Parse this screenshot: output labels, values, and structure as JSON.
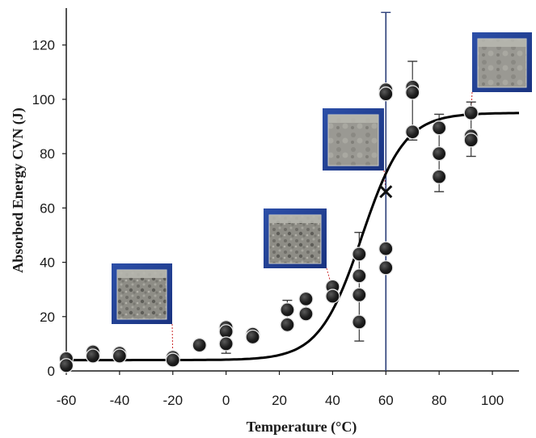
{
  "chart_data": {
    "type": "scatter",
    "title": "",
    "xlabel": "Temperature (°C)",
    "ylabel": "Absorbed Energy CVN (J)",
    "xlim": [
      -60,
      110
    ],
    "ylim": [
      0,
      133
    ],
    "x_ticks": [
      -60,
      -40,
      -20,
      0,
      20,
      40,
      60,
      80,
      100
    ],
    "y_ticks": [
      0,
      20,
      40,
      60,
      80,
      100,
      120
    ],
    "grid": false,
    "legend": "none",
    "colors": {
      "points": "#1a1a1a",
      "curve": "#000000",
      "guide_line": "#2a3e78",
      "leader": "#cc2a2a"
    },
    "series": [
      {
        "type": "scatter",
        "points": [
          {
            "x": -60,
            "y": 4.5
          },
          {
            "x": -60,
            "y": 2
          },
          {
            "x": -50,
            "y": 7
          },
          {
            "x": -50,
            "y": 5.5
          },
          {
            "x": -40,
            "y": 6.5
          },
          {
            "x": -40,
            "y": 5.5
          },
          {
            "x": -20,
            "y": 5
          },
          {
            "x": -20,
            "y": 4
          },
          {
            "x": -10,
            "y": 9.5
          },
          {
            "x": 0,
            "y": 16
          },
          {
            "x": 0,
            "y": 14.5
          },
          {
            "x": 0,
            "y": 10
          },
          {
            "x": 10,
            "y": 13.5
          },
          {
            "x": 10,
            "y": 12.5
          },
          {
            "x": 23,
            "y": 22.5
          },
          {
            "x": 23,
            "y": 17
          },
          {
            "x": 30,
            "y": 26.5
          },
          {
            "x": 30,
            "y": 21
          },
          {
            "x": 40,
            "y": 31
          },
          {
            "x": 40,
            "y": 27.5
          },
          {
            "x": 50,
            "y": 43
          },
          {
            "x": 50,
            "y": 35
          },
          {
            "x": 50,
            "y": 28
          },
          {
            "x": 50,
            "y": 18
          },
          {
            "x": 60,
            "y": 103.5
          },
          {
            "x": 60,
            "y": 102
          },
          {
            "x": 60,
            "y": 45
          },
          {
            "x": 60,
            "y": 38
          },
          {
            "x": 70,
            "y": 104.5
          },
          {
            "x": 70,
            "y": 102.5
          },
          {
            "x": 70,
            "y": 88
          },
          {
            "x": 80,
            "y": 89.5
          },
          {
            "x": 80,
            "y": 80
          },
          {
            "x": 80,
            "y": 71.5
          },
          {
            "x": 92,
            "y": 95
          },
          {
            "x": 92,
            "y": 86.5
          },
          {
            "x": 92,
            "y": 85
          }
        ]
      },
      {
        "type": "line",
        "model": "sigmoid",
        "lower_shelf": 4,
        "upper_shelf": 95,
        "midpoint_x": 51,
        "transition_width": 8
      },
      {
        "type": "mean_error_bars",
        "points": [
          {
            "x": -60,
            "y": 3.2,
            "low": 2,
            "high": 4.5
          },
          {
            "x": -50,
            "y": 6.2,
            "low": 5.5,
            "high": 7
          },
          {
            "x": -40,
            "y": 6,
            "low": 5.5,
            "high": 6.5
          },
          {
            "x": -20,
            "y": 4.5,
            "low": 4,
            "high": 5
          },
          {
            "x": -10,
            "y": 9.5,
            "low": 8.5,
            "high": 10.5
          },
          {
            "x": 0,
            "y": 13.5,
            "low": 6.5,
            "high": 17
          },
          {
            "x": 10,
            "y": 13,
            "low": 12,
            "high": 14
          },
          {
            "x": 23,
            "y": 19.5,
            "low": 16,
            "high": 26
          },
          {
            "x": 30,
            "y": 24,
            "low": 21,
            "high": 27
          },
          {
            "x": 40,
            "y": 29.5,
            "low": 27,
            "high": 32
          },
          {
            "x": 50,
            "y": 31,
            "low": 11,
            "high": 51
          },
          {
            "x": 60,
            "y": 66,
            "low": 0,
            "high": 132
          },
          {
            "x": 70,
            "y": 98.5,
            "low": 85,
            "high": 114
          },
          {
            "x": 80,
            "y": 80,
            "low": 66,
            "high": 94.5
          },
          {
            "x": 92,
            "y": 89,
            "low": 79,
            "high": 99
          }
        ]
      },
      {
        "type": "x_markers",
        "points": [
          {
            "x": 60,
            "y": 66
          }
        ]
      }
    ],
    "fracture_images": [
      {
        "name": "fracture-photo-minus-20c",
        "attach": {
          "x": -20,
          "y": 4.5
        }
      },
      {
        "name": "fracture-photo-40c",
        "attach": {
          "x": 40,
          "y": 30
        }
      },
      {
        "name": "fracture-photo-60c",
        "attach": {
          "x": 60,
          "y": 66
        }
      },
      {
        "name": "fracture-photo-92c",
        "attach": {
          "x": 92,
          "y": 95
        }
      }
    ]
  }
}
